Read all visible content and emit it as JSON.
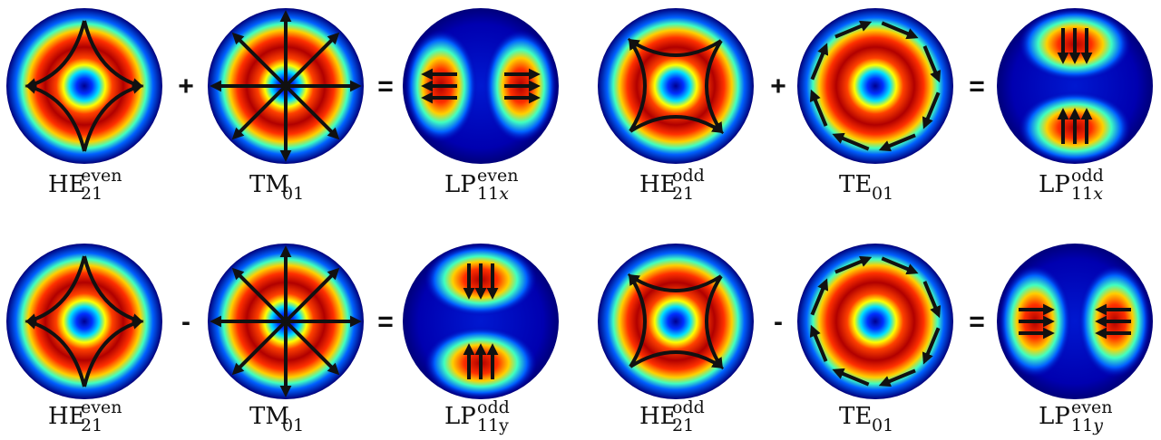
{
  "rows": [
    {
      "panels": [
        {
          "base": "HE",
          "sub": "21",
          "sup": "even"
        },
        {
          "base": "TM",
          "sub": "01"
        },
        {
          "base": "LP",
          "sub": "11",
          "sub_italic": "x",
          "sup": "even"
        },
        {
          "base": "HE",
          "sub": "21",
          "sup": "odd"
        },
        {
          "base": "TE",
          "sub": "01"
        },
        {
          "base": "LP",
          "sub": "11",
          "sub_italic": "x",
          "sup": "odd"
        }
      ],
      "operators": [
        "+",
        "=",
        "+",
        "="
      ]
    },
    {
      "panels": [
        {
          "base": "HE",
          "sub": "21",
          "sup": "even"
        },
        {
          "base": "TM",
          "sub": "01"
        },
        {
          "base": "LP",
          "sub": "11y",
          "sup": "odd"
        },
        {
          "base": "HE",
          "sub": "21",
          "sup": "odd"
        },
        {
          "base": "TE",
          "sub": "01"
        },
        {
          "base": "LP",
          "sub": "11",
          "sub_italic": "y",
          "sup": "even"
        }
      ],
      "operators": [
        "-",
        "=",
        "-",
        "="
      ]
    }
  ]
}
